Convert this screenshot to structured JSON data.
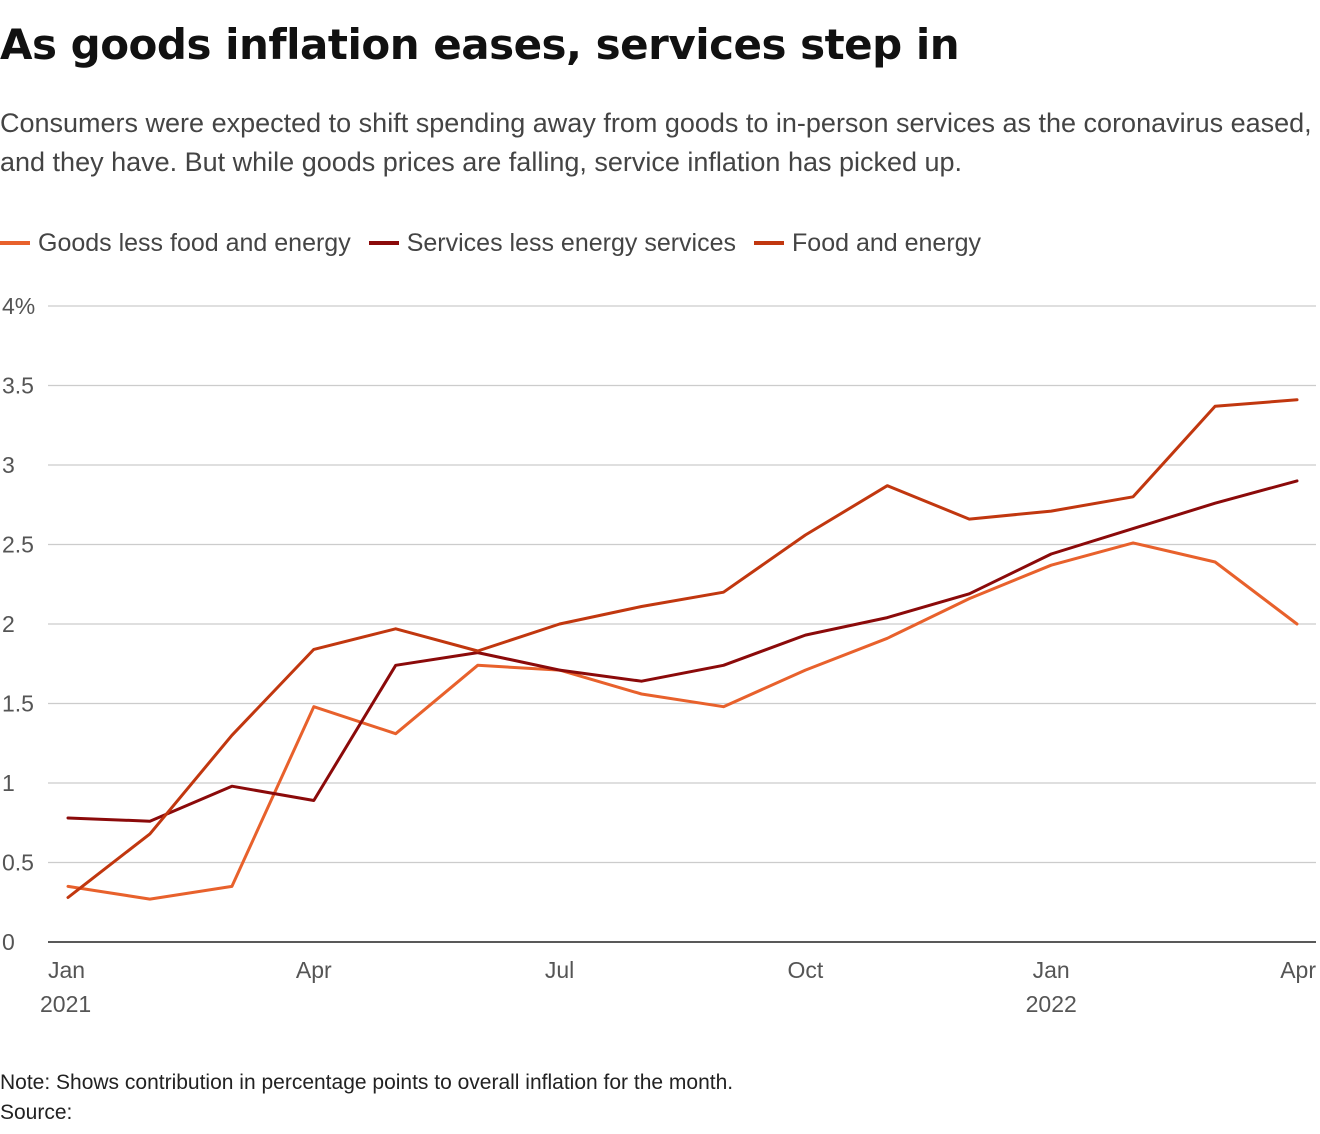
{
  "title": "As goods inflation eases, services step in",
  "subtitle": "Consumers were expected to shift spending away from goods to in-person services as the coronavirus eased, and they have. But while goods prices are falling, service inflation has picked up.",
  "note": "Note: Shows contribution in percentage points to overall inflation for the month.",
  "source": "Source:",
  "colors": {
    "goods": "#e8612c",
    "services": "#8b0a0a",
    "food": "#c1370f",
    "grid": "#cccccc",
    "axis": "#222222"
  },
  "chart_data": {
    "type": "line",
    "x": [
      "2021-01",
      "2021-02",
      "2021-03",
      "2021-04",
      "2021-05",
      "2021-06",
      "2021-07",
      "2021-08",
      "2021-09",
      "2021-10",
      "2021-11",
      "2021-12",
      "2022-01",
      "2022-02",
      "2022-03",
      "2022-04"
    ],
    "y_ticks": [
      {
        "value": 0,
        "label": "0"
      },
      {
        "value": 0.5,
        "label": "0.5"
      },
      {
        "value": 1,
        "label": "1"
      },
      {
        "value": 1.5,
        "label": "1.5"
      },
      {
        "value": 2,
        "label": "2"
      },
      {
        "value": 2.5,
        "label": "2.5"
      },
      {
        "value": 3,
        "label": "3"
      },
      {
        "value": 3.5,
        "label": "3.5"
      },
      {
        "value": 4,
        "label": "4%"
      }
    ],
    "x_ticks": [
      {
        "index": 0,
        "label": "Jan",
        "year": "2021"
      },
      {
        "index": 3,
        "label": "Apr",
        "year": ""
      },
      {
        "index": 6,
        "label": "Jul",
        "year": ""
      },
      {
        "index": 9,
        "label": "Oct",
        "year": ""
      },
      {
        "index": 12,
        "label": "Jan",
        "year": "2022"
      },
      {
        "index": 15,
        "label": "Apr",
        "year": ""
      }
    ],
    "ylim": [
      0,
      4
    ],
    "grid": true,
    "legend": "top-left",
    "series": [
      {
        "key": "goods",
        "name": "Goods less food and energy",
        "values": [
          0.35,
          0.27,
          0.35,
          1.48,
          1.31,
          1.74,
          1.71,
          1.56,
          1.48,
          1.71,
          1.91,
          2.16,
          2.37,
          2.51,
          2.39,
          2.0
        ]
      },
      {
        "key": "services",
        "name": "Services less energy services",
        "values": [
          0.78,
          0.76,
          0.98,
          0.89,
          1.74,
          1.82,
          1.71,
          1.64,
          1.74,
          1.93,
          2.04,
          2.19,
          2.44,
          2.6,
          2.76,
          2.9
        ]
      },
      {
        "key": "food",
        "name": "Food and energy",
        "values": [
          0.28,
          0.68,
          1.3,
          1.84,
          1.97,
          1.83,
          2.0,
          2.11,
          2.2,
          2.56,
          2.87,
          2.66,
          2.71,
          2.8,
          3.37,
          3.41
        ]
      }
    ]
  }
}
